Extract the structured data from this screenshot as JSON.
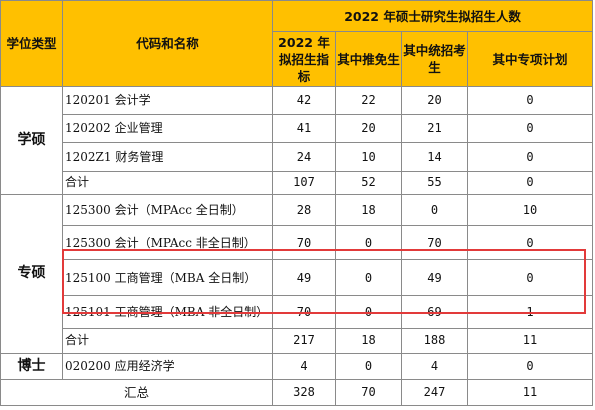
{
  "header": {
    "col_type": "学位类型",
    "col_code": "代码和名称",
    "group": "2022 年硕士研究生拟招生人数",
    "col_quota": "2022 年拟招生指标",
    "col_exempt": "其中推免生",
    "col_unified": "其中统招考生",
    "col_special": "其中专项计划"
  },
  "categories": {
    "academic": "学硕",
    "professional": "专硕",
    "doctor": "博士"
  },
  "rows": [
    {
      "name": "120201 会计学",
      "quota": "42",
      "exempt": "22",
      "unified": "20",
      "special": "0"
    },
    {
      "name": "120202 企业管理",
      "quota": "41",
      "exempt": "20",
      "unified": "21",
      "special": "0"
    },
    {
      "name": "1202Z1 财务管理",
      "quota": "24",
      "exempt": "10",
      "unified": "14",
      "special": "0"
    },
    {
      "name": "合计",
      "quota": "107",
      "exempt": "52",
      "unified": "55",
      "special": "0"
    },
    {
      "name": "125300 会计（MPAcc 全日制）",
      "quota": "28",
      "exempt": "18",
      "unified": "0",
      "special": "10"
    },
    {
      "name": "125300 会计（MPAcc 非全日制）",
      "quota": "70",
      "exempt": "0",
      "unified": "70",
      "special": "0"
    },
    {
      "name": "125100 工商管理（MBA 全日制）",
      "quota": "49",
      "exempt": "0",
      "unified": "49",
      "special": "0"
    },
    {
      "name": "125101 工商管理（MBA 非全日制）",
      "quota": "70",
      "exempt": "0",
      "unified": "69",
      "special": "1"
    },
    {
      "name": "合计",
      "quota": "217",
      "exempt": "18",
      "unified": "188",
      "special": "11"
    },
    {
      "name": "020200 应用经济学",
      "quota": "4",
      "exempt": "0",
      "unified": "4",
      "special": "0"
    }
  ],
  "total": {
    "label": "汇总",
    "quota": "328",
    "exempt": "70",
    "unified": "247",
    "special": "11"
  },
  "colors": {
    "header_bg": "#ffc000",
    "highlight": "#e23a3a"
  }
}
